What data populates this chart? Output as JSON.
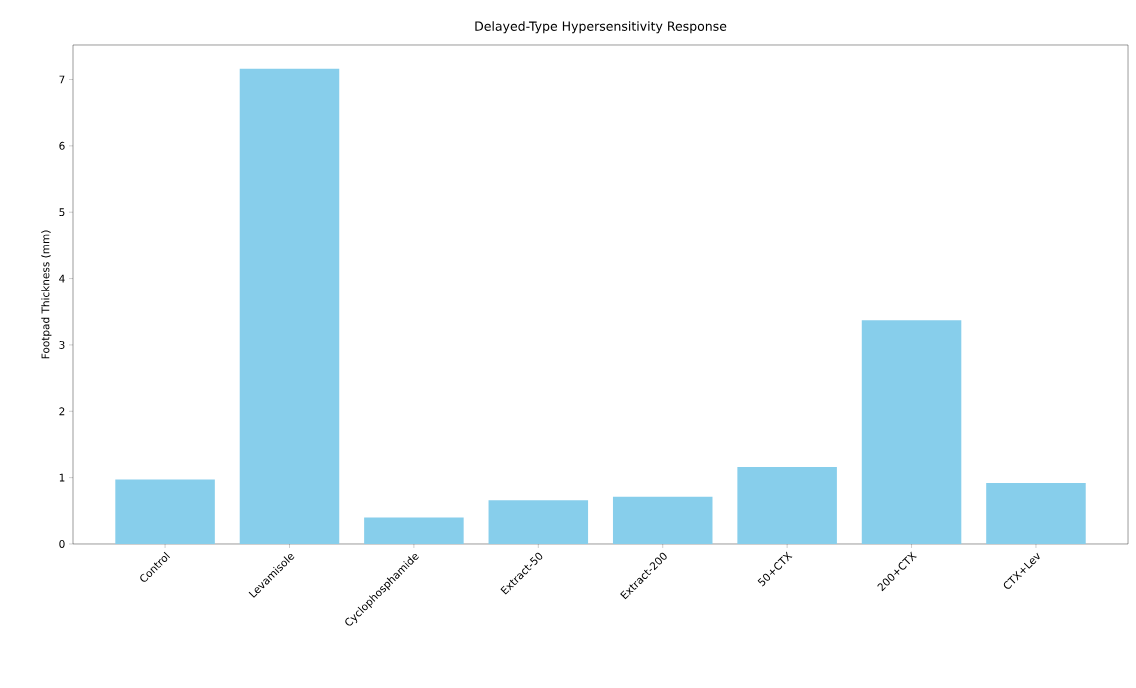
{
  "chart_data": {
    "type": "bar",
    "title": "Delayed-Type Hypersensitivity Response",
    "ylabel": "Footpad Thickness (mm)",
    "categories": [
      "Control",
      "Levamisole",
      "Cyclophosphamide",
      "Extract-50",
      "Extract-200",
      "50+CTX",
      "200+CTX",
      "CTX+Lev"
    ],
    "values": [
      0.97,
      7.16,
      0.4,
      0.66,
      0.71,
      1.16,
      3.37,
      0.92
    ],
    "color": "#87ceeb",
    "ylim": [
      0,
      7.52
    ],
    "yticks": [
      0,
      1,
      2,
      3,
      4,
      5,
      6,
      7
    ]
  }
}
